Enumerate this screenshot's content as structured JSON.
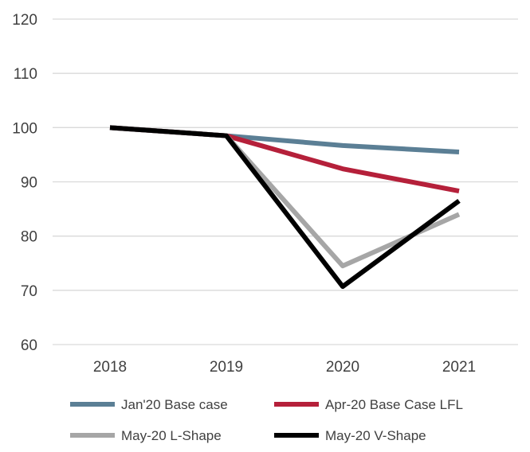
{
  "chart_data": {
    "type": "line",
    "title": "",
    "xlabel": "",
    "ylabel": "",
    "categories": [
      "2018",
      "2019",
      "2020",
      "2021"
    ],
    "ylim": [
      60,
      120
    ],
    "yticks": [
      60,
      70,
      80,
      90,
      100,
      110,
      120
    ],
    "grid": true,
    "legend_position": "bottom",
    "series": [
      {
        "name": "Jan'20 Base case",
        "color": "#5b7f95",
        "values": [
          100,
          98.5,
          96.7,
          95.5
        ]
      },
      {
        "name": "Apr-20 Base Case LFL",
        "color": "#b5203a",
        "values": [
          100,
          98.5,
          92.4,
          88.3
        ]
      },
      {
        "name": "May-20 L-Shape",
        "color": "#a6a6a6",
        "values": [
          100,
          98.5,
          74.5,
          84.0
        ]
      },
      {
        "name": "May-20 V-Shape",
        "color": "#000000",
        "values": [
          100,
          98.5,
          70.7,
          86.5
        ]
      }
    ]
  }
}
